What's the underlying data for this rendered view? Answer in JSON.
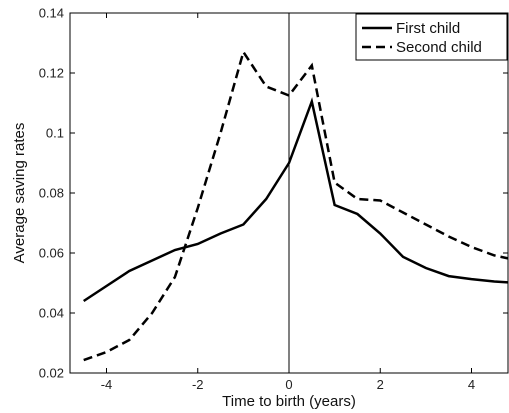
{
  "chart_data": {
    "type": "line",
    "title": "",
    "xlabel": "Time to birth (years)",
    "ylabel": "Average saving rates",
    "xlim": [
      -4.8,
      4.8
    ],
    "ylim": [
      0.02,
      0.14
    ],
    "xticks": [
      -4,
      -2,
      0,
      2,
      4
    ],
    "xtick_labels": [
      "-4",
      "-2",
      "0",
      "2",
      "4"
    ],
    "yticks": [
      0.02,
      0.04,
      0.06,
      0.08,
      0.1,
      0.12,
      0.14
    ],
    "ytick_labels": [
      "0.02",
      "0.04",
      "0.06",
      "0.08",
      "0.1",
      "0.12",
      "0.14"
    ],
    "grid": false,
    "legend_position": "top-right",
    "reference_line_x": 0,
    "series": [
      {
        "name": "First child",
        "style": "solid",
        "color": "#000000",
        "x": [
          -4.5,
          -4.0,
          -3.5,
          -3.0,
          -2.5,
          -2.0,
          -1.5,
          -1.0,
          -0.5,
          0.0,
          0.5,
          1.0,
          1.5,
          2.0,
          2.5,
          3.0,
          3.5,
          4.0,
          4.5,
          4.8
        ],
        "y": [
          0.044,
          0.049,
          0.054,
          0.0575,
          0.061,
          0.063,
          0.0665,
          0.0695,
          0.078,
          0.09,
          0.1105,
          0.076,
          0.073,
          0.0665,
          0.0587,
          0.055,
          0.0523,
          0.0513,
          0.0505,
          0.0502
        ]
      },
      {
        "name": "Second child",
        "style": "dashed",
        "color": "#000000",
        "x": [
          -4.5,
          -4.0,
          -3.5,
          -3.0,
          -2.5,
          -2.0,
          -1.5,
          -1.0,
          -0.5,
          0.0,
          0.5,
          1.0,
          1.5,
          2.0,
          2.5,
          3.0,
          3.5,
          4.0,
          4.5,
          4.8
        ],
        "y": [
          0.0243,
          0.027,
          0.031,
          0.04,
          0.052,
          0.075,
          0.1,
          0.127,
          0.1155,
          0.1125,
          0.1225,
          0.0835,
          0.078,
          0.0775,
          0.0735,
          0.0695,
          0.0655,
          0.062,
          0.0592,
          0.0582
        ]
      }
    ]
  }
}
